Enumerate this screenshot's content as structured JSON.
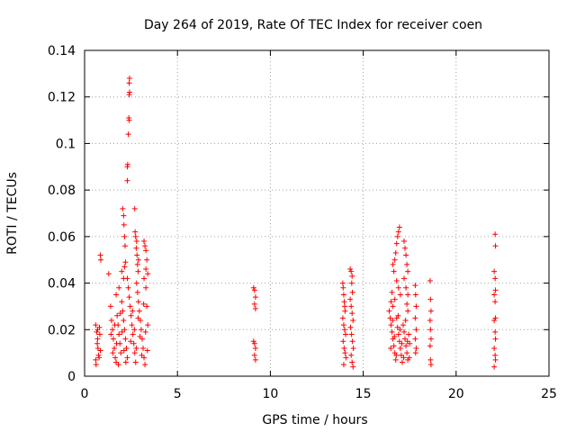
{
  "chart_data": {
    "type": "scatter",
    "title": "Day 264 of 2019, Rate Of TEC Index for receiver coen",
    "xlabel": "GPS time / hours",
    "ylabel": "ROTI / TECUs",
    "xlim": [
      0,
      25
    ],
    "ylim": [
      0,
      0.14
    ],
    "xticks": [
      0,
      5,
      10,
      15,
      20,
      25
    ],
    "xtick_labels": [
      "0",
      "5",
      "10",
      "15",
      "20",
      "25"
    ],
    "yticks": [
      0,
      0.02,
      0.04,
      0.06,
      0.08,
      0.1,
      0.12,
      0.14
    ],
    "ytick_labels": [
      "0",
      "0.02",
      "0.04",
      "0.06",
      "0.08",
      "0.1",
      "0.12",
      "0.14"
    ],
    "grid": true,
    "marker": "+",
    "color": "#ff0000",
    "series": [
      {
        "name": "ROTI",
        "points": [
          [
            0.6,
            0.022
          ],
          [
            0.65,
            0.019
          ],
          [
            0.7,
            0.016
          ],
          [
            0.72,
            0.012
          ],
          [
            0.75,
            0.009
          ],
          [
            0.6,
            0.007
          ],
          [
            0.68,
            0.014
          ],
          [
            0.8,
            0.021
          ],
          [
            0.82,
            0.018
          ],
          [
            0.85,
            0.011
          ],
          [
            0.62,
            0.005
          ],
          [
            0.7,
            0.02
          ],
          [
            0.78,
            0.008
          ],
          [
            0.85,
            0.052
          ],
          [
            0.87,
            0.05
          ],
          [
            1.3,
            0.044
          ],
          [
            1.4,
            0.03
          ],
          [
            1.45,
            0.024
          ],
          [
            1.5,
            0.02
          ],
          [
            1.55,
            0.016
          ],
          [
            1.6,
            0.012
          ],
          [
            1.65,
            0.008
          ],
          [
            1.7,
            0.006
          ],
          [
            1.75,
            0.026
          ],
          [
            1.8,
            0.022
          ],
          [
            1.85,
            0.018
          ],
          [
            1.9,
            0.014
          ],
          [
            1.95,
            0.01
          ],
          [
            2.0,
            0.032
          ],
          [
            2.05,
            0.028
          ],
          [
            2.1,
            0.024
          ],
          [
            2.15,
            0.02
          ],
          [
            2.2,
            0.016
          ],
          [
            2.25,
            0.012
          ],
          [
            2.3,
            0.008
          ],
          [
            1.42,
            0.018
          ],
          [
            1.52,
            0.01
          ],
          [
            1.62,
            0.022
          ],
          [
            1.72,
            0.014
          ],
          [
            1.82,
            0.005
          ],
          [
            1.92,
            0.027
          ],
          [
            2.02,
            0.019
          ],
          [
            2.12,
            0.011
          ],
          [
            2.22,
            0.006
          ],
          [
            1.7,
            0.035
          ],
          [
            1.85,
            0.038
          ],
          [
            2.0,
            0.045
          ],
          [
            2.1,
            0.042
          ],
          [
            2.15,
            0.047
          ],
          [
            2.2,
            0.049
          ],
          [
            2.05,
            0.072
          ],
          [
            2.1,
            0.069
          ],
          [
            2.12,
            0.065
          ],
          [
            2.15,
            0.06
          ],
          [
            2.18,
            0.056
          ],
          [
            2.3,
            0.09
          ],
          [
            2.32,
            0.091
          ],
          [
            2.3,
            0.084
          ],
          [
            2.35,
            0.104
          ],
          [
            2.4,
            0.11
          ],
          [
            2.38,
            0.111
          ],
          [
            2.4,
            0.121
          ],
          [
            2.42,
            0.122
          ],
          [
            2.4,
            0.126
          ],
          [
            2.42,
            0.128
          ],
          [
            2.3,
            0.042
          ],
          [
            2.35,
            0.038
          ],
          [
            2.4,
            0.034
          ],
          [
            2.45,
            0.03
          ],
          [
            2.5,
            0.026
          ],
          [
            2.55,
            0.022
          ],
          [
            2.6,
            0.018
          ],
          [
            2.65,
            0.014
          ],
          [
            2.7,
            0.01
          ],
          [
            2.75,
            0.006
          ],
          [
            2.8,
            0.04
          ],
          [
            2.85,
            0.036
          ],
          [
            2.9,
            0.032
          ],
          [
            2.95,
            0.028
          ],
          [
            3.0,
            0.024
          ],
          [
            3.05,
            0.02
          ],
          [
            3.1,
            0.016
          ],
          [
            3.15,
            0.012
          ],
          [
            3.2,
            0.008
          ],
          [
            3.25,
            0.005
          ],
          [
            3.3,
            0.038
          ],
          [
            3.35,
            0.03
          ],
          [
            3.4,
            0.022
          ],
          [
            2.48,
            0.015
          ],
          [
            2.58,
            0.028
          ],
          [
            2.68,
            0.02
          ],
          [
            2.78,
            0.012
          ],
          [
            2.88,
            0.025
          ],
          [
            2.98,
            0.017
          ],
          [
            3.08,
            0.009
          ],
          [
            3.18,
            0.031
          ],
          [
            3.28,
            0.019
          ],
          [
            3.38,
            0.011
          ],
          [
            2.7,
            0.072
          ],
          [
            2.72,
            0.062
          ],
          [
            2.75,
            0.06
          ],
          [
            2.8,
            0.058
          ],
          [
            2.78,
            0.055
          ],
          [
            2.82,
            0.052
          ],
          [
            2.85,
            0.048
          ],
          [
            2.88,
            0.045
          ],
          [
            2.9,
            0.05
          ],
          [
            3.2,
            0.058
          ],
          [
            3.25,
            0.056
          ],
          [
            3.3,
            0.054
          ],
          [
            3.35,
            0.05
          ],
          [
            3.3,
            0.046
          ],
          [
            3.4,
            0.044
          ],
          [
            3.2,
            0.042
          ],
          [
            9.1,
            0.038
          ],
          [
            9.15,
            0.037
          ],
          [
            9.2,
            0.034
          ],
          [
            9.15,
            0.031
          ],
          [
            9.2,
            0.029
          ],
          [
            9.1,
            0.015
          ],
          [
            9.15,
            0.014
          ],
          [
            9.2,
            0.012
          ],
          [
            9.15,
            0.009
          ],
          [
            9.2,
            0.007
          ],
          [
            13.9,
            0.04
          ],
          [
            13.92,
            0.038
          ],
          [
            13.95,
            0.035
          ],
          [
            13.98,
            0.032
          ],
          [
            14.0,
            0.03
          ],
          [
            14.02,
            0.028
          ],
          [
            13.9,
            0.025
          ],
          [
            13.95,
            0.022
          ],
          [
            14.0,
            0.02
          ],
          [
            14.05,
            0.018
          ],
          [
            13.92,
            0.015
          ],
          [
            13.97,
            0.012
          ],
          [
            14.02,
            0.01
          ],
          [
            14.07,
            0.008
          ],
          [
            13.95,
            0.005
          ],
          [
            14.3,
            0.046
          ],
          [
            14.35,
            0.045
          ],
          [
            14.4,
            0.043
          ],
          [
            14.38,
            0.04
          ],
          [
            14.42,
            0.036
          ],
          [
            14.3,
            0.033
          ],
          [
            14.35,
            0.03
          ],
          [
            14.4,
            0.027
          ],
          [
            14.45,
            0.024
          ],
          [
            14.32,
            0.021
          ],
          [
            14.37,
            0.018
          ],
          [
            14.42,
            0.015
          ],
          [
            14.47,
            0.012
          ],
          [
            14.35,
            0.009
          ],
          [
            14.4,
            0.006
          ],
          [
            14.45,
            0.004
          ],
          [
            16.4,
            0.028
          ],
          [
            16.45,
            0.025
          ],
          [
            16.5,
            0.022
          ],
          [
            16.55,
            0.019
          ],
          [
            16.6,
            0.016
          ],
          [
            16.65,
            0.013
          ],
          [
            16.7,
            0.01
          ],
          [
            16.75,
            0.007
          ],
          [
            16.8,
            0.025
          ],
          [
            16.85,
            0.021
          ],
          [
            16.9,
            0.018
          ],
          [
            16.95,
            0.015
          ],
          [
            17.0,
            0.012
          ],
          [
            17.05,
            0.009
          ],
          [
            17.1,
            0.006
          ],
          [
            17.15,
            0.022
          ],
          [
            17.2,
            0.019
          ],
          [
            17.25,
            0.016
          ],
          [
            17.3,
            0.013
          ],
          [
            17.35,
            0.01
          ],
          [
            17.4,
            0.007
          ],
          [
            17.45,
            0.018
          ],
          [
            17.5,
            0.014
          ],
          [
            16.48,
            0.012
          ],
          [
            16.58,
            0.024
          ],
          [
            16.68,
            0.017
          ],
          [
            16.78,
            0.009
          ],
          [
            16.88,
            0.026
          ],
          [
            16.98,
            0.02
          ],
          [
            17.08,
            0.014
          ],
          [
            17.18,
            0.008
          ],
          [
            17.28,
            0.024
          ],
          [
            17.38,
            0.015
          ],
          [
            17.48,
            0.008
          ],
          [
            16.6,
            0.048
          ],
          [
            16.65,
            0.045
          ],
          [
            16.7,
            0.05
          ],
          [
            16.75,
            0.053
          ],
          [
            16.8,
            0.057
          ],
          [
            16.85,
            0.06
          ],
          [
            16.9,
            0.062
          ],
          [
            16.95,
            0.064
          ],
          [
            16.8,
            0.041
          ],
          [
            16.9,
            0.038
          ],
          [
            17.0,
            0.035
          ],
          [
            16.7,
            0.033
          ],
          [
            16.6,
            0.03
          ],
          [
            16.5,
            0.032
          ],
          [
            16.55,
            0.036
          ],
          [
            17.2,
            0.058
          ],
          [
            17.25,
            0.055
          ],
          [
            17.3,
            0.052
          ],
          [
            17.35,
            0.048
          ],
          [
            17.4,
            0.045
          ],
          [
            17.2,
            0.042
          ],
          [
            17.3,
            0.038
          ],
          [
            17.4,
            0.035
          ],
          [
            17.35,
            0.031
          ],
          [
            17.4,
            0.028
          ],
          [
            17.8,
            0.039
          ],
          [
            17.82,
            0.035
          ],
          [
            17.85,
            0.03
          ],
          [
            17.8,
            0.025
          ],
          [
            17.85,
            0.02
          ],
          [
            17.8,
            0.016
          ],
          [
            17.85,
            0.012
          ],
          [
            17.82,
            0.01
          ],
          [
            18.6,
            0.041
          ],
          [
            18.62,
            0.033
          ],
          [
            18.65,
            0.028
          ],
          [
            18.6,
            0.024
          ],
          [
            18.62,
            0.02
          ],
          [
            18.65,
            0.016
          ],
          [
            18.6,
            0.013
          ],
          [
            18.62,
            0.007
          ],
          [
            18.65,
            0.005
          ],
          [
            22.1,
            0.061
          ],
          [
            22.12,
            0.056
          ],
          [
            22.05,
            0.045
          ],
          [
            22.1,
            0.042
          ],
          [
            22.12,
            0.037
          ],
          [
            22.05,
            0.035
          ],
          [
            22.1,
            0.032
          ],
          [
            22.12,
            0.025
          ],
          [
            22.05,
            0.024
          ],
          [
            22.1,
            0.019
          ],
          [
            22.12,
            0.016
          ],
          [
            22.05,
            0.012
          ],
          [
            22.1,
            0.009
          ],
          [
            22.12,
            0.007
          ],
          [
            22.05,
            0.004
          ]
        ]
      }
    ]
  }
}
